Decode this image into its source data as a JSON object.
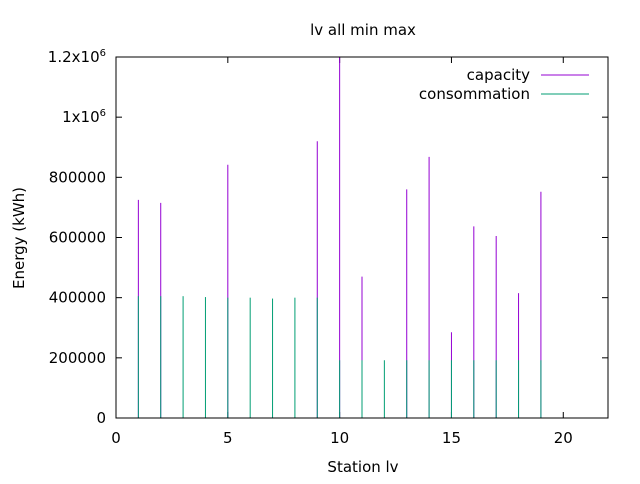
{
  "chart_data": {
    "type": "bar",
    "title": "lv all min max",
    "xlabel": "Station lv",
    "ylabel": "Energy (kWh)",
    "xlim": [
      0,
      22
    ],
    "ylim": [
      0,
      1200000
    ],
    "x_ticks": [
      "0",
      "5",
      "10",
      "15",
      "20"
    ],
    "x_tick_values": [
      0,
      5,
      10,
      15,
      20
    ],
    "y_ticks": [
      {
        "value": 0,
        "label": "0",
        "sup": ""
      },
      {
        "value": 200000,
        "label": "200000",
        "sup": ""
      },
      {
        "value": 400000,
        "label": "400000",
        "sup": ""
      },
      {
        "value": 600000,
        "label": "600000",
        "sup": ""
      },
      {
        "value": 800000,
        "label": "800000",
        "sup": ""
      },
      {
        "value": 1000000,
        "label": "1x10",
        "sup": "6"
      },
      {
        "value": 1200000,
        "label": "1.2x10",
        "sup": "6"
      }
    ],
    "legend_position": "top-right",
    "x": [
      1,
      2,
      3,
      4,
      5,
      6,
      7,
      8,
      9,
      10,
      11,
      12,
      13,
      14,
      15,
      16,
      17,
      18,
      19
    ],
    "series": [
      {
        "name": "capacity",
        "color": "#9400d3",
        "values": [
          725000,
          715000,
          0,
          0,
          842000,
          0,
          0,
          0,
          920000,
          1200000,
          470000,
          0,
          760000,
          868000,
          285000,
          637000,
          605000,
          415000,
          752000
        ]
      },
      {
        "name": "consommation",
        "color": "#009e73",
        "values": [
          405000,
          405000,
          405000,
          402000,
          400000,
          400000,
          397000,
          400000,
          400000,
          192000,
          192000,
          192000,
          192000,
          192000,
          192000,
          192000,
          192000,
          192000,
          192000
        ]
      }
    ]
  }
}
